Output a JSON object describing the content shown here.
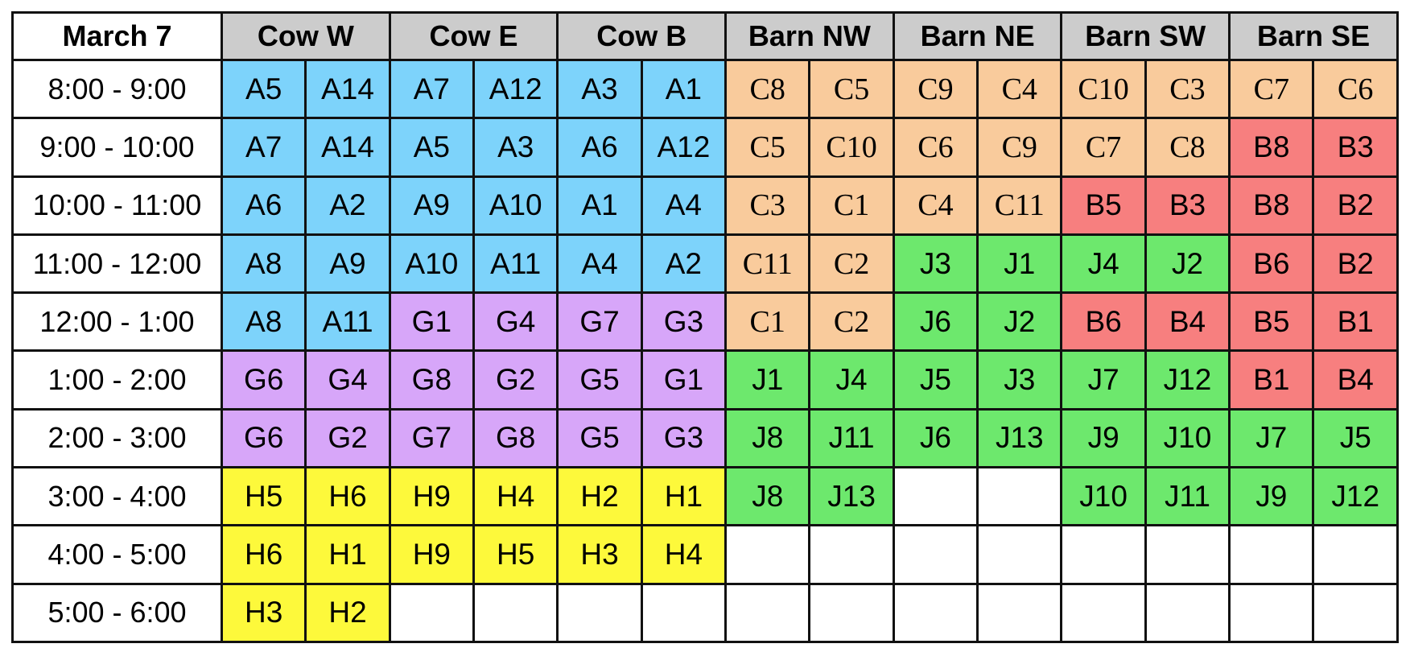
{
  "title": "March 7",
  "colors": {
    "A": "#7dd3fb",
    "C": "#f9cb9c",
    "B": "#f77f7f",
    "G": "#d7a6f9",
    "J": "#6de86d",
    "H": "#fdf93b",
    "empty": "#ffffff",
    "header": "#cccccc"
  },
  "columns": [
    "Cow W",
    "Cow E",
    "Cow B",
    "Barn NW",
    "Barn NE",
    "Barn SW",
    "Barn SE"
  ],
  "rows": [
    {
      "time": "8:00 - 9:00",
      "cells": [
        "A5",
        "A14",
        "A7",
        "A12",
        "A3",
        "A1",
        "C8",
        "C5",
        "C9",
        "C4",
        "C10",
        "C3",
        "C7",
        "C6"
      ]
    },
    {
      "time": "9:00 - 10:00",
      "cells": [
        "A7",
        "A14",
        "A5",
        "A3",
        "A6",
        "A12",
        "C5",
        "C10",
        "C6",
        "C9",
        "C7",
        "C8",
        "B8",
        "B3"
      ]
    },
    {
      "time": "10:00 - 11:00",
      "cells": [
        "A6",
        "A2",
        "A9",
        "A10",
        "A1",
        "A4",
        "C3",
        "C1",
        "C4",
        "C11",
        "B5",
        "B3",
        "B8",
        "B2"
      ]
    },
    {
      "time": "11:00 - 12:00",
      "cells": [
        "A8",
        "A9",
        "A10",
        "A11",
        "A4",
        "A2",
        "C11",
        "C2",
        "J3",
        "J1",
        "J4",
        "J2",
        "B6",
        "B2"
      ]
    },
    {
      "time": "12:00 - 1:00",
      "cells": [
        "A8",
        "A11",
        "G1",
        "G4",
        "G7",
        "G3",
        "C1",
        "C2",
        "J6",
        "J2",
        "B6",
        "B4",
        "B5",
        "B1"
      ]
    },
    {
      "time": "1:00 - 2:00",
      "cells": [
        "G6",
        "G4",
        "G8",
        "G2",
        "G5",
        "G1",
        "J1",
        "J4",
        "J5",
        "J3",
        "J7",
        "J12",
        "B1",
        "B4"
      ]
    },
    {
      "time": "2:00 - 3:00",
      "cells": [
        "G6",
        "G2",
        "G7",
        "G8",
        "G5",
        "G3",
        "J8",
        "J11",
        "J6",
        "J13",
        "J9",
        "J10",
        "J7",
        "J5"
      ]
    },
    {
      "time": "3:00 - 4:00",
      "cells": [
        "H5",
        "H6",
        "H9",
        "H4",
        "H2",
        "H1",
        "J8",
        "J13",
        "",
        "",
        "J10",
        "J11",
        "J9",
        "J12"
      ]
    },
    {
      "time": "4:00 - 5:00",
      "cells": [
        "H6",
        "H1",
        "H9",
        "H5",
        "H3",
        "H4",
        "",
        "",
        "",
        "",
        "",
        "",
        "",
        ""
      ]
    },
    {
      "time": "5:00 - 6:00",
      "cells": [
        "H3",
        "H2",
        "",
        "",
        "",
        "",
        "",
        "",
        "",
        "",
        "",
        "",
        "",
        ""
      ]
    }
  ]
}
